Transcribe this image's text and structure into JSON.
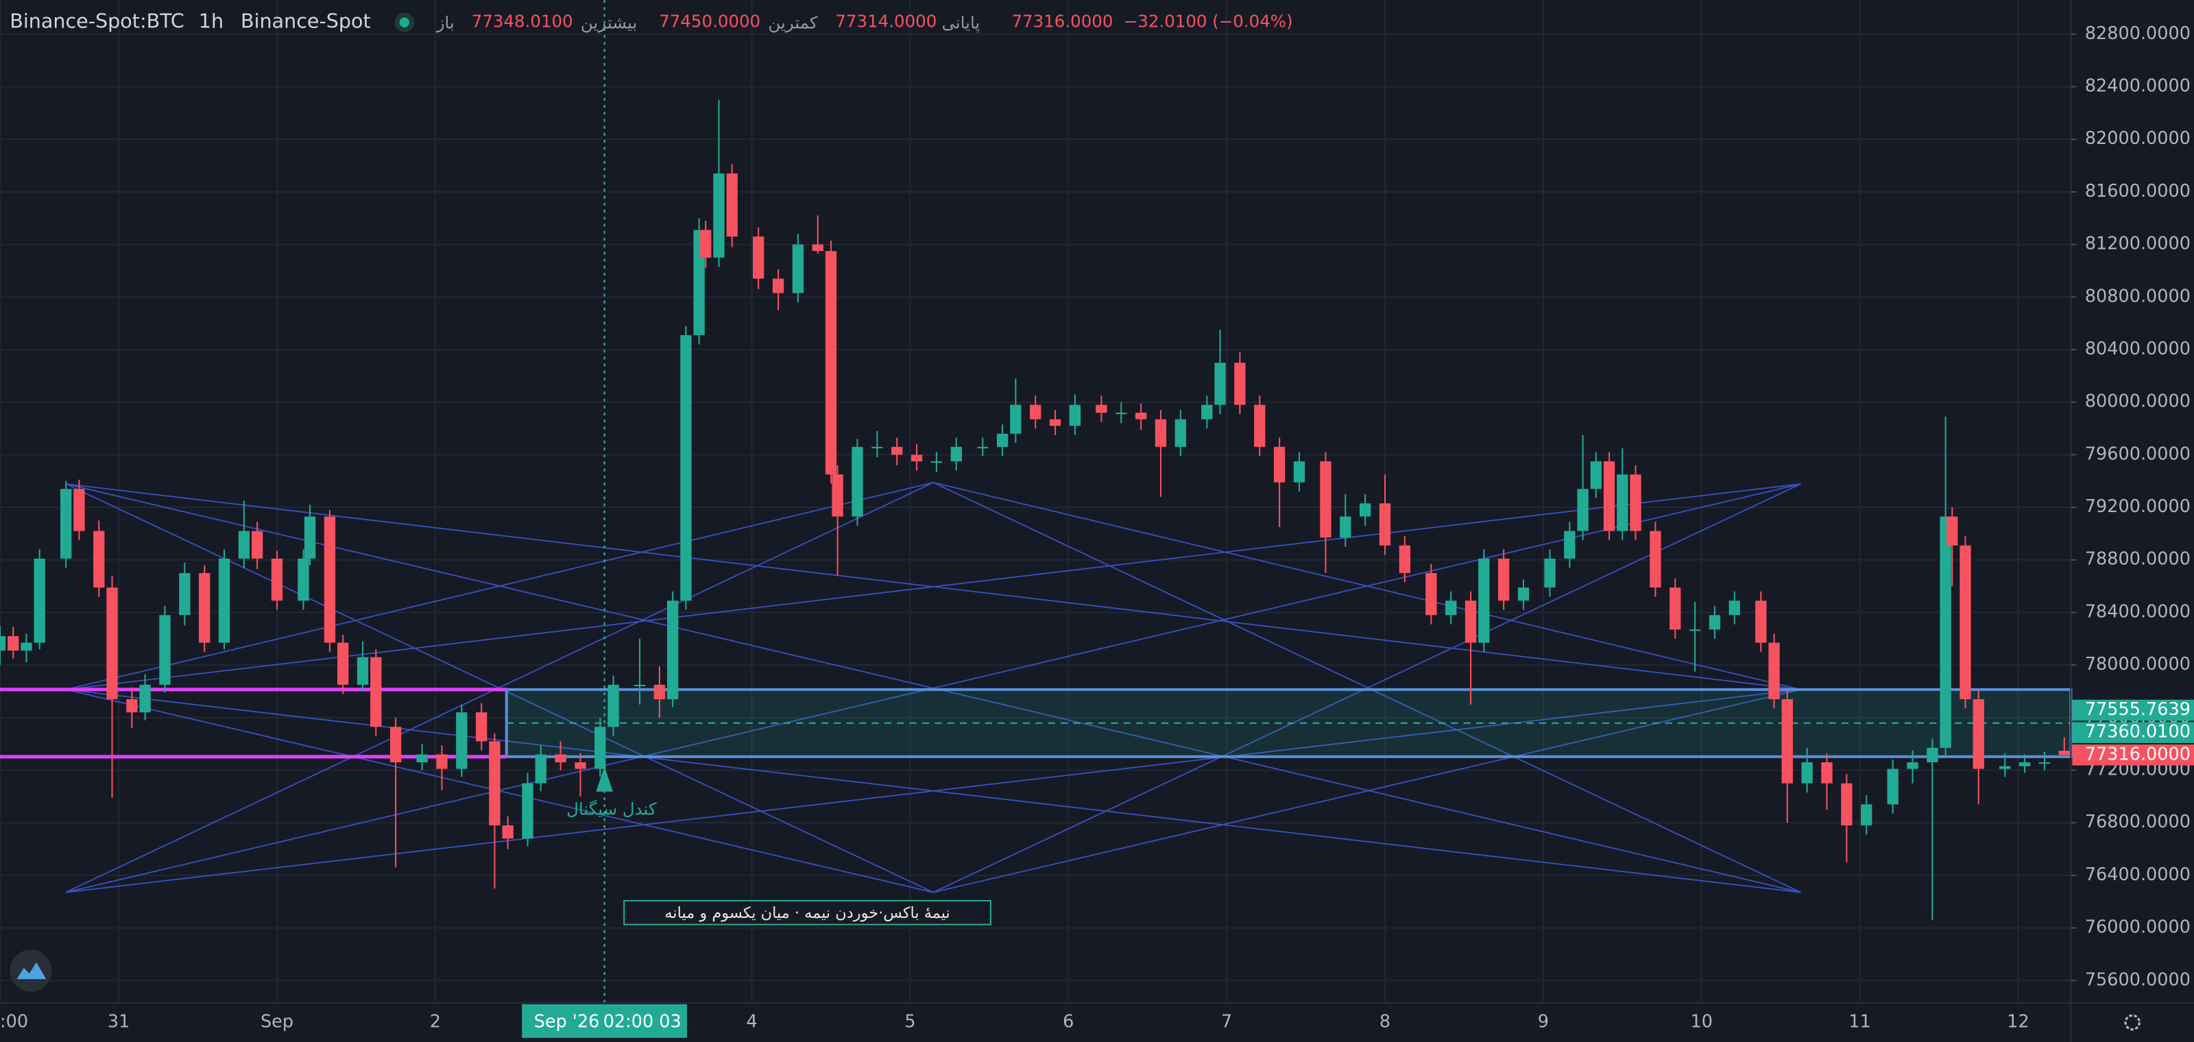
{
  "chart_data": {
    "type": "candlestick",
    "title": "Binance-Spot:BTC",
    "interval": "1h",
    "exchange": "Binance-Spot",
    "ohlc_legend": [
      {
        "label": "باز",
        "value": "77348.0100"
      },
      {
        "label": "بیشترین",
        "value": "77450.0000"
      },
      {
        "label": "کمترین",
        "value": "77314.0000"
      },
      {
        "label": "پایانی",
        "value": "77316.0000"
      }
    ],
    "change": "−32.0100 (−0.04%)",
    "up_color": "#22ab94",
    "down_color": "#f7525f",
    "grid": true,
    "xlim": [
      -18,
      296
    ],
    "xticks": [
      {
        "value": -18,
        "label": ":00"
      },
      {
        "value": 0,
        "label": "31"
      },
      {
        "value": 24,
        "label": "Sep"
      },
      {
        "value": 48,
        "label": "2"
      },
      {
        "value": 96,
        "label": "4"
      },
      {
        "value": 120,
        "label": "5"
      },
      {
        "value": 144,
        "label": "6"
      },
      {
        "value": 168,
        "label": "7"
      },
      {
        "value": 192,
        "label": "8"
      },
      {
        "value": 216,
        "label": "9"
      },
      {
        "value": 240,
        "label": "10"
      },
      {
        "value": 264,
        "label": "11"
      },
      {
        "value": 288,
        "label": "12"
      }
    ],
    "ylim": [
      75430,
      83060
    ],
    "yticks": [
      {
        "value": 75600,
        "label": "75600.0000"
      },
      {
        "value": 76000,
        "label": "76000.0000"
      },
      {
        "value": 76400,
        "label": "76400.0000"
      },
      {
        "value": 76800,
        "label": "76800.0000"
      },
      {
        "value": 77200,
        "label": "77200.0000"
      },
      {
        "value": 77600,
        "label": "77600.0000"
      },
      {
        "value": 78000,
        "label": "78000.0000"
      },
      {
        "value": 78400,
        "label": "78400.0000"
      },
      {
        "value": 78800,
        "label": "78800.0000"
      },
      {
        "value": 79200,
        "label": "79200.0000"
      },
      {
        "value": 79600,
        "label": "79600.0000"
      },
      {
        "value": 80000,
        "label": "80000.0000"
      },
      {
        "value": 80400,
        "label": "80400.0000"
      },
      {
        "value": 80800,
        "label": "80800.0000"
      },
      {
        "value": 81200,
        "label": "81200.0000"
      },
      {
        "value": 81600,
        "label": "81600.0000"
      },
      {
        "value": 82000,
        "label": "82000.0000"
      },
      {
        "value": 82400,
        "label": "82400.0000"
      },
      {
        "value": 82800,
        "label": "82800.0000"
      }
    ],
    "price_labels": [
      {
        "value": 77555.7639,
        "label": "77555.7639",
        "color": "#22ab94"
      },
      {
        "value": 77360.01,
        "label": "77360.0100",
        "color": "#22ab94"
      },
      {
        "value": 77316,
        "label": "77316.0000",
        "color": "#f7525f"
      }
    ],
    "signal_text": "کندل سیگنال",
    "box_note": "نیمهٔ باکس·خوردن نیمه · میان یکسوم و میانه",
    "crosshair_date": "Sep '26",
    "crosshair_time": "02:00 03",
    "x": [
      -18,
      -16,
      -14,
      -12,
      -8,
      -6,
      -3,
      -1,
      2,
      4,
      7,
      10,
      13,
      16,
      19,
      21,
      24,
      28,
      29,
      32,
      34,
      37,
      39,
      42,
      46,
      49,
      52,
      55,
      57,
      59,
      62,
      64,
      67,
      70,
      73,
      75,
      79,
      82,
      84,
      86,
      88,
      89,
      91,
      93,
      97,
      100,
      103,
      106,
      108,
      109,
      112,
      115,
      118,
      121,
      124,
      127,
      131,
      134,
      136,
      139,
      142,
      145,
      149,
      152,
      155,
      158,
      161,
      165,
      167,
      170,
      173,
      176,
      179,
      183,
      186,
      189,
      192,
      195,
      199,
      202,
      205,
      207,
      210,
      213,
      217,
      220,
      222,
      224,
      226,
      228,
      230,
      233,
      236,
      239,
      242,
      245,
      249,
      251,
      253,
      256,
      259,
      262,
      265,
      269,
      272,
      275,
      277,
      278,
      280,
      282,
      286,
      289,
      292,
      295
    ],
    "ohlc": [
      [
        78110,
        78300,
        78000,
        78220
      ],
      [
        78220,
        78290,
        78050,
        78110
      ],
      [
        78110,
        78240,
        78020,
        78170
      ],
      [
        78170,
        78880,
        78120,
        78810
      ],
      [
        78810,
        79400,
        78740,
        79340
      ],
      [
        79340,
        79410,
        78950,
        79020
      ],
      [
        79020,
        79100,
        78520,
        78590
      ],
      [
        78590,
        78680,
        76990,
        77740
      ],
      [
        77740,
        77830,
        77520,
        77640
      ],
      [
        77640,
        77930,
        77580,
        77850
      ],
      [
        77850,
        78450,
        77790,
        78380
      ],
      [
        78380,
        78780,
        78300,
        78700
      ],
      [
        78700,
        78760,
        78100,
        78170
      ],
      [
        78170,
        78880,
        78120,
        78810
      ],
      [
        78810,
        79250,
        78740,
        79020
      ],
      [
        79020,
        79090,
        78730,
        78810
      ],
      [
        78810,
        78870,
        78420,
        78490
      ],
      [
        78490,
        78880,
        78420,
        78810
      ],
      [
        78810,
        79220,
        78760,
        79130
      ],
      [
        79130,
        79180,
        78100,
        78170
      ],
      [
        78170,
        78230,
        77780,
        77850
      ],
      [
        77850,
        78180,
        77800,
        78060
      ],
      [
        78060,
        78120,
        77460,
        77530
      ],
      [
        77530,
        77600,
        76460,
        77260
      ],
      [
        77260,
        77400,
        77200,
        77320
      ],
      [
        77320,
        77390,
        77050,
        77210
      ],
      [
        77210,
        77700,
        77150,
        77640
      ],
      [
        77640,
        77710,
        77350,
        77420
      ],
      [
        77420,
        77480,
        76300,
        76780
      ],
      [
        76780,
        76850,
        76600,
        76680
      ],
      [
        76680,
        77180,
        76620,
        77100
      ],
      [
        77100,
        77390,
        77040,
        77320
      ],
      [
        77320,
        77420,
        77200,
        77260
      ],
      [
        77260,
        77330,
        77000,
        77210
      ],
      [
        77210,
        77600,
        77150,
        77530
      ],
      [
        77530,
        77920,
        77460,
        77850
      ],
      [
        77850,
        78200,
        77700,
        77850
      ],
      [
        77850,
        77990,
        77600,
        77740
      ],
      [
        77740,
        78560,
        77680,
        78490
      ],
      [
        78490,
        80580,
        78420,
        80510
      ],
      [
        80510,
        81400,
        80440,
        81310
      ],
      [
        81310,
        81380,
        81020,
        81100
      ],
      [
        81100,
        82300,
        81030,
        81740
      ],
      [
        81740,
        81810,
        81180,
        81260
      ],
      [
        81260,
        81330,
        80860,
        80940
      ],
      [
        80940,
        81010,
        80700,
        80830
      ],
      [
        80830,
        81280,
        80760,
        81200
      ],
      [
        81200,
        81420,
        81130,
        81150
      ],
      [
        81150,
        81230,
        79380,
        79450
      ],
      [
        79450,
        79520,
        78680,
        79130
      ],
      [
        79130,
        79720,
        79060,
        79660
      ],
      [
        79660,
        79780,
        79580,
        79660
      ],
      [
        79660,
        79730,
        79520,
        79600
      ],
      [
        79600,
        79680,
        79480,
        79550
      ],
      [
        79550,
        79620,
        79470,
        79550
      ],
      [
        79550,
        79730,
        79480,
        79660
      ],
      [
        79660,
        79730,
        79590,
        79660
      ],
      [
        79660,
        79830,
        79590,
        79760
      ],
      [
        79760,
        80180,
        79690,
        79980
      ],
      [
        79980,
        80050,
        79800,
        79870
      ],
      [
        79870,
        79940,
        79750,
        79820
      ],
      [
        79820,
        80060,
        79750,
        79980
      ],
      [
        79980,
        80050,
        79850,
        79920
      ],
      [
        79920,
        80000,
        79840,
        79920
      ],
      [
        79920,
        79990,
        79790,
        79870
      ],
      [
        79870,
        79940,
        79280,
        79660
      ],
      [
        79660,
        79940,
        79590,
        79870
      ],
      [
        79870,
        80050,
        79800,
        79980
      ],
      [
        79980,
        80550,
        79910,
        80300
      ],
      [
        80300,
        80380,
        79910,
        79980
      ],
      [
        79980,
        80050,
        79590,
        79660
      ],
      [
        79660,
        79730,
        79050,
        79390
      ],
      [
        79390,
        79620,
        79320,
        79550
      ],
      [
        79550,
        79620,
        78700,
        78970
      ],
      [
        78970,
        79300,
        78900,
        79130
      ],
      [
        79130,
        79300,
        79060,
        79230
      ],
      [
        79230,
        79450,
        78840,
        78910
      ],
      [
        78910,
        78980,
        78630,
        78700
      ],
      [
        78700,
        78770,
        78310,
        78380
      ],
      [
        78380,
        78560,
        78310,
        78490
      ],
      [
        78490,
        78560,
        77700,
        78170
      ],
      [
        78170,
        78880,
        78100,
        78810
      ],
      [
        78810,
        78880,
        78420,
        78490
      ],
      [
        78490,
        78650,
        78420,
        78590
      ],
      [
        78590,
        78880,
        78520,
        78810
      ],
      [
        78810,
        79090,
        78740,
        79020
      ],
      [
        79020,
        79750,
        78950,
        79340
      ],
      [
        79340,
        79620,
        79270,
        79550
      ],
      [
        79550,
        79620,
        78950,
        79020
      ],
      [
        79020,
        79650,
        78950,
        79450
      ],
      [
        79450,
        79520,
        78950,
        79020
      ],
      [
        79020,
        79090,
        78520,
        78590
      ],
      [
        78590,
        78660,
        78200,
        78270
      ],
      [
        78270,
        78480,
        77950,
        78270
      ],
      [
        78270,
        78450,
        78200,
        78380
      ],
      [
        78380,
        78560,
        78310,
        78490
      ],
      [
        78490,
        78560,
        78100,
        78170
      ],
      [
        78170,
        78240,
        77670,
        77740
      ],
      [
        77740,
        77810,
        76800,
        77100
      ],
      [
        77100,
        77370,
        77030,
        77260
      ],
      [
        77260,
        77330,
        76900,
        77100
      ],
      [
        77100,
        77170,
        76500,
        76780
      ],
      [
        76780,
        77010,
        76710,
        76940
      ],
      [
        76940,
        77280,
        76870,
        77210
      ],
      [
        77210,
        77350,
        77100,
        77260
      ],
      [
        77260,
        77440,
        76060,
        77370
      ],
      [
        77370,
        79890,
        77300,
        79130
      ],
      [
        79130,
        79200,
        78600,
        78910
      ],
      [
        78910,
        78980,
        77670,
        77740
      ],
      [
        77740,
        77810,
        76940,
        77210
      ],
      [
        77210,
        77330,
        77150,
        77230
      ],
      [
        77230,
        77320,
        77180,
        77260
      ],
      [
        77260,
        77340,
        77200,
        77260
      ],
      [
        77348.01,
        77450,
        77314,
        77316
      ]
    ]
  }
}
